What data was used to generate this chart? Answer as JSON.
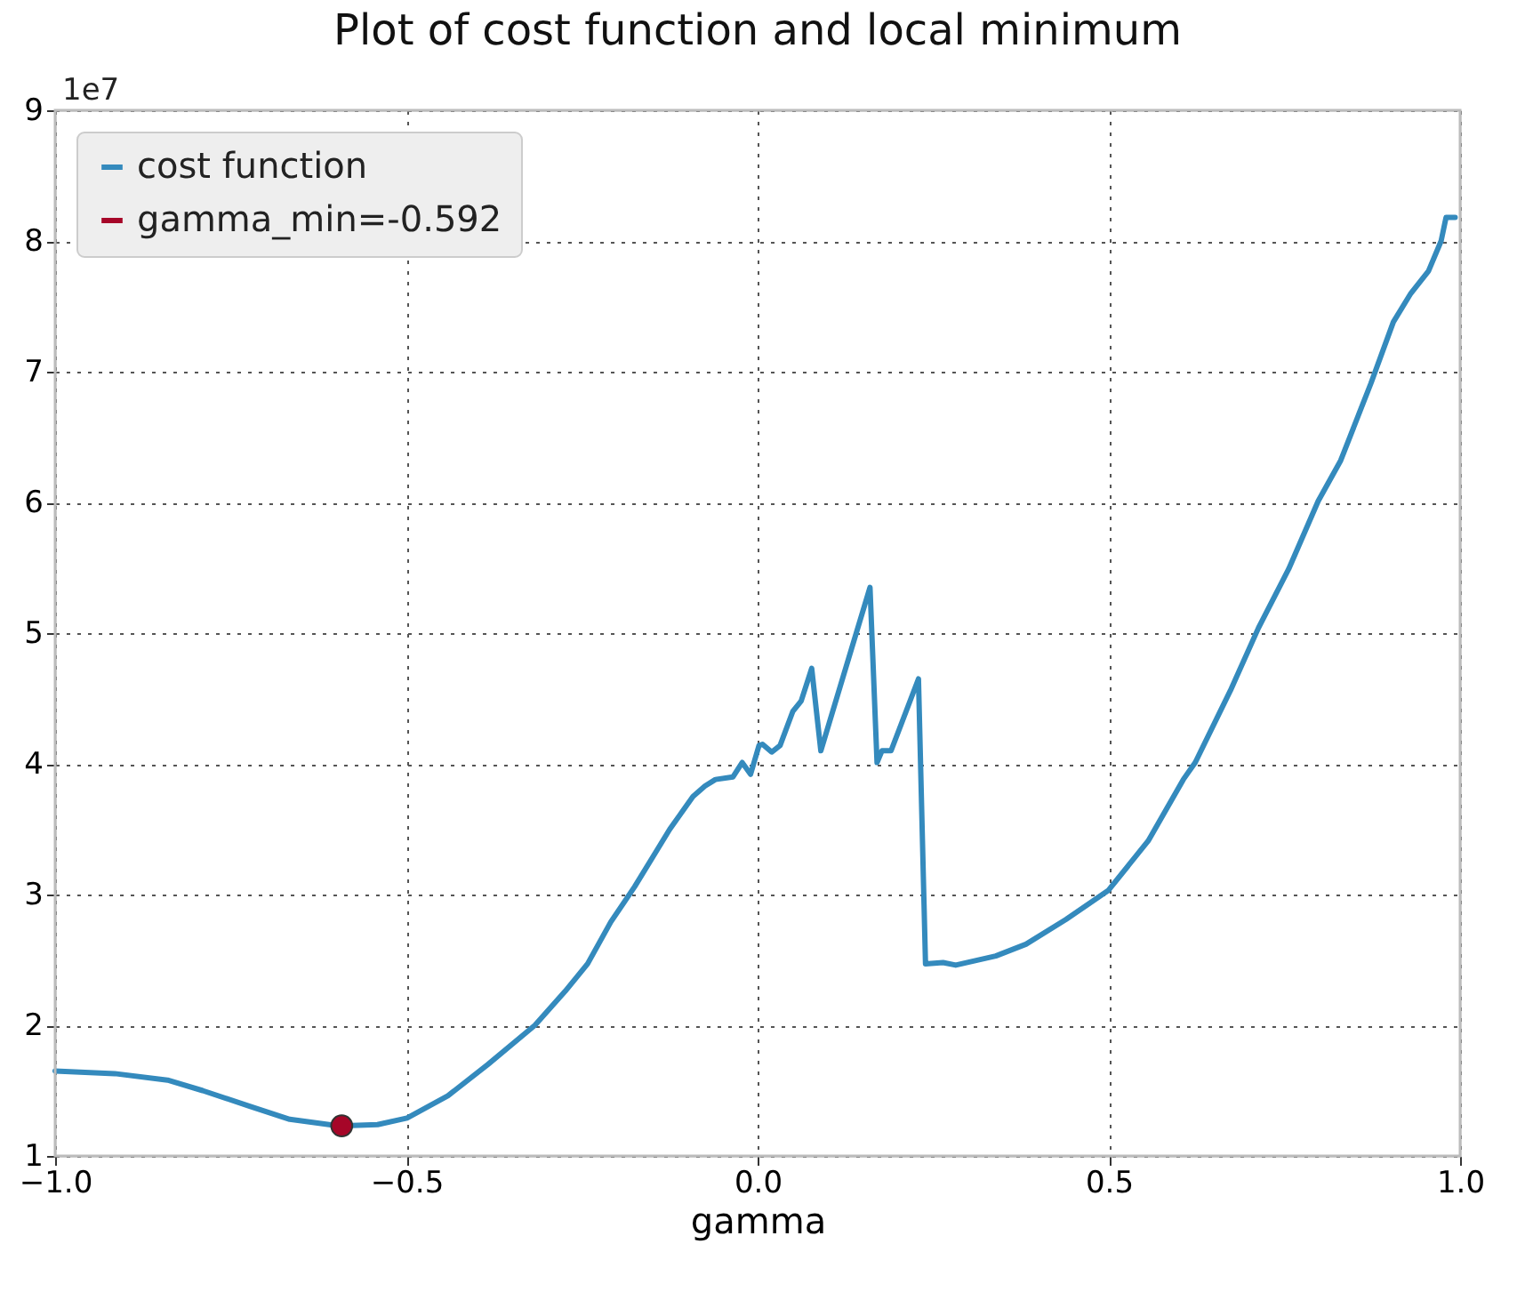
{
  "chart_data": {
    "type": "line",
    "title": "Plot of cost function and local minimum",
    "xlabel": "gamma",
    "annotations": [
      "1e7"
    ],
    "xlim": [
      -1.0,
      1.0
    ],
    "xticks": [
      {
        "value": -1.0,
        "label": "−1.0"
      },
      {
        "value": -0.5,
        "label": "−0.5"
      },
      {
        "value": 0.0,
        "label": "0.0"
      },
      {
        "value": 0.5,
        "label": "0.5"
      },
      {
        "value": 1.0,
        "label": "1.0"
      }
    ],
    "ylim": [
      1,
      9
    ],
    "yticks": [
      1,
      2,
      3,
      4,
      5,
      6,
      7,
      8,
      9
    ],
    "grid": true,
    "legend": "top left",
    "line_style": "solid",
    "series": [
      {
        "name": "cost function",
        "color": "#348abd",
        "marker": "none",
        "x": [
          -1.0,
          -0.915,
          -0.84,
          -0.79,
          -0.723,
          -0.666,
          -0.596,
          -0.541,
          -0.499,
          -0.441,
          -0.384,
          -0.317,
          -0.274,
          -0.242,
          -0.209,
          -0.175,
          -0.142,
          -0.125,
          -0.092,
          -0.075,
          -0.06,
          -0.035,
          -0.022,
          -0.01,
          0.002,
          0.007,
          0.02,
          0.032,
          0.05,
          0.062,
          0.077,
          0.09,
          0.16,
          0.17,
          0.177,
          0.19,
          0.229,
          0.239,
          0.264,
          0.282,
          0.339,
          0.382,
          0.439,
          0.499,
          0.556,
          0.606,
          0.623,
          0.673,
          0.713,
          0.756,
          0.798,
          0.83,
          0.873,
          0.905,
          0.93,
          0.955,
          0.973,
          0.98,
          0.993
        ],
        "values": [
          1.65,
          1.63,
          1.58,
          1.5,
          1.38,
          1.28,
          1.23,
          1.24,
          1.29,
          1.46,
          1.7,
          2.0,
          2.26,
          2.47,
          2.79,
          3.06,
          3.35,
          3.5,
          3.75,
          3.83,
          3.88,
          3.9,
          4.01,
          3.92,
          4.14,
          4.15,
          4.09,
          4.14,
          4.4,
          4.48,
          4.73,
          4.1,
          5.35,
          4.01,
          4.1,
          4.1,
          4.65,
          2.47,
          2.48,
          2.46,
          2.53,
          2.62,
          2.81,
          3.03,
          3.41,
          3.88,
          4.01,
          4.56,
          5.04,
          5.49,
          6.01,
          6.32,
          6.91,
          7.38,
          7.6,
          7.77,
          8.0,
          8.18,
          8.18
        ]
      },
      {
        "name": "gamma_min=-0.592",
        "type": "scatter",
        "color": "#a60628",
        "marker": "circle",
        "x": [
          -0.592
        ],
        "values": [
          1.23
        ]
      }
    ]
  }
}
